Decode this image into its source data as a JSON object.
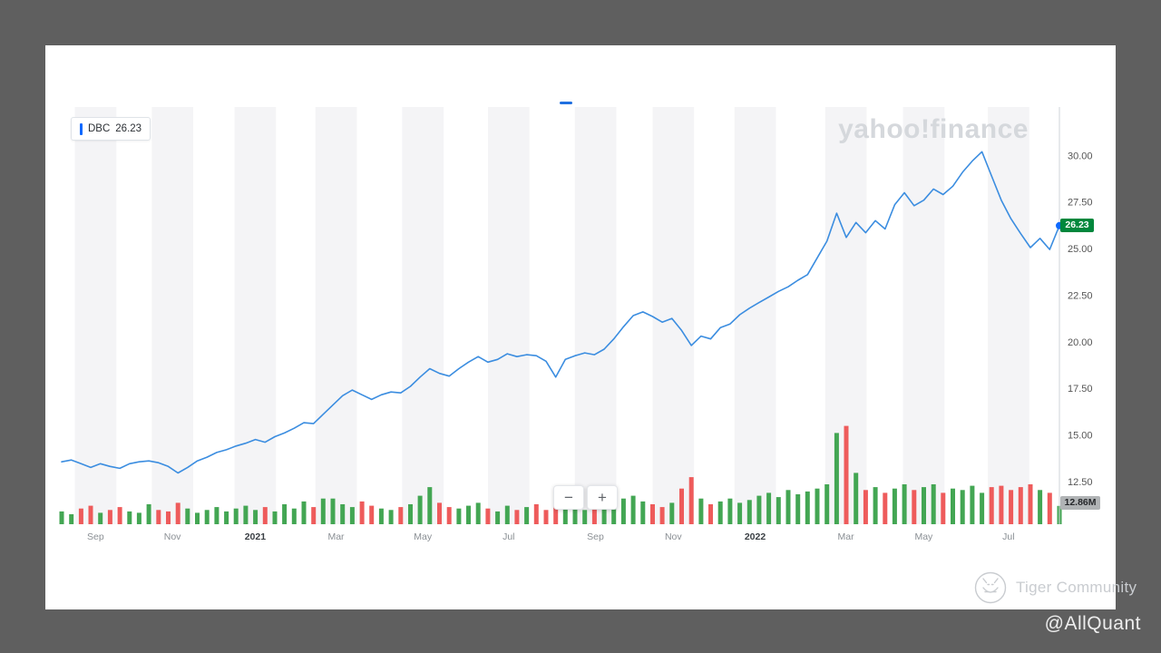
{
  "watermarks": {
    "yahoo": "yahoo!finance",
    "tiger": "Tiger Community"
  },
  "credit": "@AllQuant",
  "legend": {
    "symbol": "DBC",
    "value": "26.23"
  },
  "price_tag": "26.23",
  "volume_tag": "12.86M",
  "zoom": {
    "minus_label": "−",
    "plus_label": "+"
  },
  "colors": {
    "page_bg": "#5f5f5f",
    "card_bg": "#ffffff",
    "line": "#3b8de0",
    "dot": "#0f69ff",
    "up": "#43a653",
    "down": "#ee5b5b",
    "stripe": "#f4f4f6",
    "axis": "#cfd3d8",
    "price_tag_bg": "#00873c",
    "legend_bar": "#0f69ff"
  },
  "chart_data": {
    "type": "line",
    "symbol": "DBC",
    "last_price": 26.23,
    "last_volume_label": "12.86M",
    "ylim": [
      10.2,
      32.6
    ],
    "y_ticks": [
      "30.00",
      "27.50",
      "25.00",
      "22.50",
      "20.00",
      "17.50",
      "15.00",
      "12.50"
    ],
    "x_ticks": [
      {
        "label": "Sep",
        "f": 0.034,
        "year": false
      },
      {
        "label": "Nov",
        "f": 0.111,
        "year": false
      },
      {
        "label": "2021",
        "f": 0.194,
        "year": true
      },
      {
        "label": "Mar",
        "f": 0.275,
        "year": false
      },
      {
        "label": "May",
        "f": 0.362,
        "year": false
      },
      {
        "label": "Jul",
        "f": 0.448,
        "year": false
      },
      {
        "label": "Sep",
        "f": 0.535,
        "year": false
      },
      {
        "label": "Nov",
        "f": 0.613,
        "year": false
      },
      {
        "label": "2022",
        "f": 0.695,
        "year": true
      },
      {
        "label": "Mar",
        "f": 0.786,
        "year": false
      },
      {
        "label": "May",
        "f": 0.864,
        "year": false
      },
      {
        "label": "Jul",
        "f": 0.949,
        "year": false
      }
    ],
    "band_width_frac": 0.0415,
    "series": [
      {
        "name": "DBC",
        "values": [
          13.55,
          13.65,
          13.45,
          13.25,
          13.45,
          13.3,
          13.2,
          13.45,
          13.55,
          13.6,
          13.5,
          13.3,
          12.95,
          13.25,
          13.6,
          13.8,
          14.05,
          14.2,
          14.4,
          14.55,
          14.75,
          14.6,
          14.9,
          15.1,
          15.35,
          15.65,
          15.6,
          16.1,
          16.6,
          17.1,
          17.4,
          17.15,
          16.9,
          17.15,
          17.3,
          17.25,
          17.6,
          18.1,
          18.55,
          18.3,
          18.15,
          18.55,
          18.9,
          19.2,
          18.9,
          19.05,
          19.35,
          19.2,
          19.3,
          19.25,
          18.95,
          18.1,
          19.05,
          19.25,
          19.4,
          19.3,
          19.6,
          20.15,
          20.8,
          21.4,
          21.6,
          21.35,
          21.05,
          21.25,
          20.6,
          19.8,
          20.3,
          20.15,
          20.75,
          20.95,
          21.45,
          21.8,
          22.1,
          22.4,
          22.7,
          22.95,
          23.3,
          23.6,
          24.5,
          25.4,
          26.9,
          25.6,
          26.4,
          25.85,
          26.5,
          26.05,
          27.35,
          28.0,
          27.3,
          27.6,
          28.2,
          27.9,
          28.35,
          29.1,
          29.7,
          30.2,
          28.9,
          27.6,
          26.6,
          25.8,
          25.05,
          25.55,
          24.95,
          26.23
        ]
      }
    ],
    "volume": {
      "unit": "M",
      "scale_max": 70,
      "values": [
        9,
        7,
        11,
        13,
        8,
        10,
        12,
        9,
        8,
        14,
        10,
        9,
        15,
        11,
        8,
        10,
        12,
        9,
        11,
        13,
        10,
        12,
        9,
        14,
        11,
        16,
        12,
        18,
        18,
        14,
        12,
        16,
        13,
        11,
        10,
        12,
        14,
        20,
        26,
        15,
        12,
        11,
        13,
        15,
        11,
        9,
        13,
        10,
        12,
        14,
        10,
        22,
        16,
        12,
        10,
        11,
        13,
        15,
        18,
        20,
        16,
        14,
        12,
        15,
        25,
        33,
        18,
        14,
        16,
        18,
        15,
        17,
        20,
        22,
        19,
        24,
        21,
        23,
        25,
        28,
        64,
        69,
        36,
        24,
        26,
        22,
        25,
        28,
        24,
        26,
        28,
        22,
        25,
        24,
        27,
        22,
        26,
        27,
        24,
        26,
        28,
        24,
        22,
        12.86
      ]
    }
  }
}
